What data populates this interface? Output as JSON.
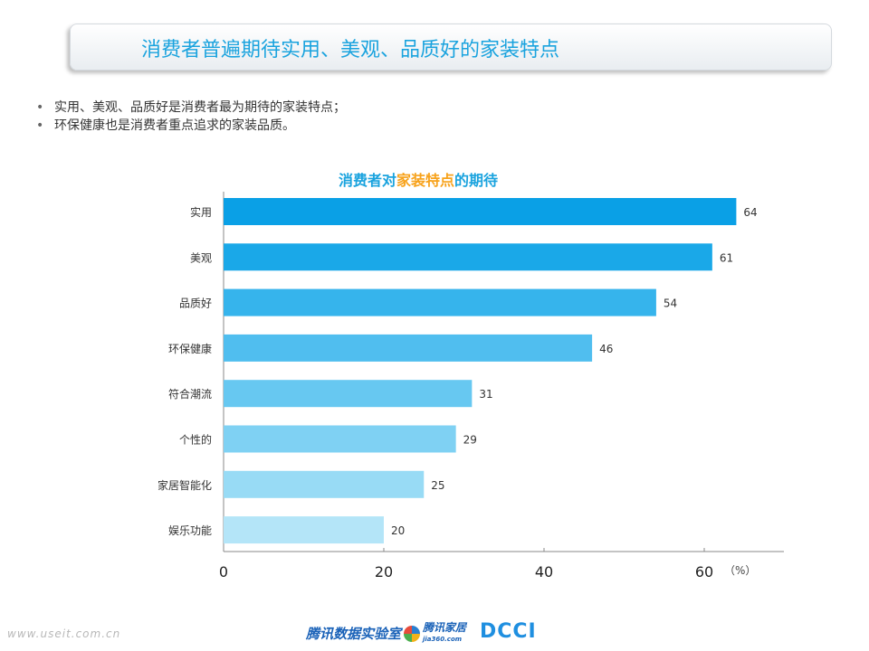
{
  "banner": {
    "title": "消费者普遍期待实用、美观、品质好的家装特点"
  },
  "bullets": [
    "实用、美观、品质好是消费者最为期待的家装特点；",
    "环保健康也是消费者重点追求的家装品质。"
  ],
  "chart_title": {
    "part1": "消费者对",
    "part2": "家装特点",
    "part3": "的期待"
  },
  "chart_data": {
    "type": "bar",
    "orientation": "horizontal",
    "categories": [
      "实用",
      "美观",
      "品质好",
      "环保健康",
      "符合潮流",
      "个性的",
      "家居智能化",
      "娱乐功能"
    ],
    "values": [
      64,
      61,
      54,
      46,
      31,
      29,
      25,
      20
    ],
    "xlim": [
      0,
      70
    ],
    "x_ticks": [
      0,
      20,
      40,
      60
    ],
    "unit": "（%）",
    "colors": [
      "#0aa0e6",
      "#1aa8e8",
      "#36b4ec",
      "#50beef",
      "#67c8f1",
      "#7fd1f3",
      "#98dbf5",
      "#b4e5f8"
    ]
  },
  "footer": {
    "url": "www.useit.com.cn",
    "logo1": "腾讯数据实验室",
    "logo2": "腾讯家居",
    "logo2_sub": "jia360.com",
    "logo3": "DCCI"
  }
}
